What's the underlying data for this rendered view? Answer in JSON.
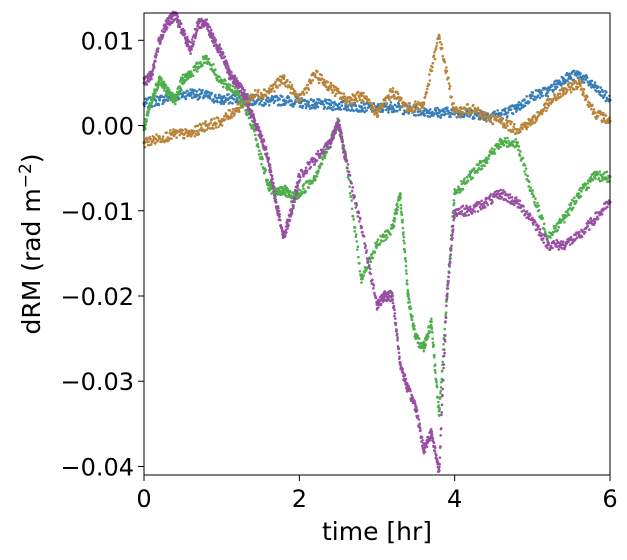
{
  "chart_data": {
    "type": "scatter",
    "title": "",
    "xlabel": "time [hr]",
    "ylabel_main": "dRM (rad m",
    "ylabel_sup": "−2",
    "ylabel_close": ")",
    "xlim": [
      0,
      6
    ],
    "ylim": [
      -0.041,
      0.0132
    ],
    "xticks": [
      {
        "value": 0,
        "label": "0"
      },
      {
        "value": 2,
        "label": "2"
      },
      {
        "value": 4,
        "label": "4"
      },
      {
        "value": 6,
        "label": "6"
      }
    ],
    "yticks": [
      {
        "value": 0.01,
        "label": "0.01"
      },
      {
        "value": 0.0,
        "label": "0.00"
      },
      {
        "value": -0.01,
        "label": "−0.01"
      },
      {
        "value": -0.02,
        "label": "−0.02"
      },
      {
        "value": -0.03,
        "label": "−0.03"
      },
      {
        "value": -0.04,
        "label": "−0.04"
      }
    ],
    "grid": false,
    "legend": "none",
    "series": [
      {
        "color": "#377eb8",
        "x": [
          0,
          0.2,
          0.4,
          0.6,
          0.8,
          1.0,
          1.2,
          1.4,
          1.6,
          1.8,
          2.0,
          2.2,
          2.4,
          2.6,
          2.8,
          3.0,
          3.2,
          3.4,
          3.6,
          3.8,
          4.0,
          4.2,
          4.4,
          4.6,
          4.8,
          5.0,
          5.2,
          5.4,
          5.6,
          5.8,
          6.0
        ],
        "y": [
          0.0025,
          0.003,
          0.0035,
          0.0038,
          0.0035,
          0.003,
          0.0032,
          0.003,
          0.0028,
          0.003,
          0.0027,
          0.0025,
          0.0024,
          0.0023,
          0.0022,
          0.002,
          0.0022,
          0.0018,
          0.0017,
          0.0015,
          0.0016,
          0.0014,
          0.0012,
          0.0013,
          0.002,
          0.0035,
          0.004,
          0.0055,
          0.006,
          0.0045,
          0.003
        ]
      },
      {
        "color": "#b8843a",
        "x": [
          0,
          0.2,
          0.4,
          0.6,
          0.8,
          1.0,
          1.2,
          1.4,
          1.6,
          1.8,
          2.0,
          2.2,
          2.4,
          2.6,
          2.8,
          3.0,
          3.2,
          3.4,
          3.6,
          3.8,
          4.0,
          4.2,
          4.4,
          4.6,
          4.8,
          5.0,
          5.2,
          5.4,
          5.6,
          5.8,
          6.0
        ],
        "y": [
          -0.002,
          -0.0015,
          -0.001,
          -0.001,
          0.0,
          0.0005,
          0.002,
          0.0035,
          0.004,
          0.0055,
          0.003,
          0.006,
          0.0045,
          0.003,
          0.0035,
          0.0015,
          0.004,
          0.002,
          0.0025,
          0.0105,
          0.0015,
          0.002,
          0.001,
          0.0005,
          -0.0005,
          0.0005,
          0.0025,
          0.004,
          0.005,
          0.0015,
          0.0005
        ]
      },
      {
        "color": "#4daf4a",
        "x": [
          0,
          0.1,
          0.2,
          0.3,
          0.4,
          0.5,
          0.6,
          0.8,
          1.0,
          1.2,
          1.4,
          1.6,
          1.7,
          1.8,
          1.9,
          2.0,
          2.2,
          2.4,
          2.5,
          2.6,
          2.8,
          3.0,
          3.2,
          3.3,
          3.4,
          3.5,
          3.6,
          3.7,
          3.8,
          3.9,
          4.0,
          4.2,
          4.4,
          4.6,
          4.8,
          5.0,
          5.2,
          5.4,
          5.6,
          5.8,
          6.0
        ],
        "y": [
          -0.0005,
          0.003,
          0.0055,
          0.004,
          0.003,
          0.0055,
          0.006,
          0.008,
          0.005,
          0.004,
          0.0,
          -0.007,
          -0.008,
          -0.0075,
          -0.0085,
          -0.008,
          -0.006,
          -0.002,
          0.0005,
          -0.004,
          -0.018,
          -0.014,
          -0.012,
          -0.008,
          -0.02,
          -0.025,
          -0.026,
          -0.023,
          -0.034,
          -0.02,
          -0.008,
          -0.006,
          -0.004,
          -0.002,
          -0.002,
          -0.008,
          -0.013,
          -0.011,
          -0.008,
          -0.006,
          -0.006
        ]
      },
      {
        "color": "#984ea3",
        "x": [
          0,
          0.1,
          0.2,
          0.3,
          0.4,
          0.5,
          0.6,
          0.7,
          0.8,
          0.9,
          1.0,
          1.1,
          1.2,
          1.3,
          1.4,
          1.5,
          1.6,
          1.7,
          1.8,
          1.9,
          2.0,
          2.2,
          2.4,
          2.5,
          2.6,
          2.8,
          3.0,
          3.1,
          3.2,
          3.3,
          3.4,
          3.5,
          3.6,
          3.7,
          3.8,
          3.9,
          4.0,
          4.2,
          4.4,
          4.6,
          4.8,
          5.0,
          5.2,
          5.4,
          5.6,
          5.8,
          6.0
        ],
        "y": [
          0.005,
          0.006,
          0.01,
          0.012,
          0.013,
          0.011,
          0.009,
          0.012,
          0.012,
          0.01,
          0.0085,
          0.006,
          0.005,
          0.0035,
          0.001,
          -0.001,
          -0.004,
          -0.009,
          -0.013,
          -0.01,
          -0.006,
          -0.004,
          -0.002,
          0.0005,
          -0.004,
          -0.012,
          -0.021,
          -0.02,
          -0.02,
          -0.028,
          -0.031,
          -0.033,
          -0.038,
          -0.036,
          -0.0405,
          -0.02,
          -0.01,
          -0.01,
          -0.009,
          -0.008,
          -0.009,
          -0.011,
          -0.014,
          -0.014,
          -0.013,
          -0.011,
          -0.009
        ]
      }
    ]
  }
}
